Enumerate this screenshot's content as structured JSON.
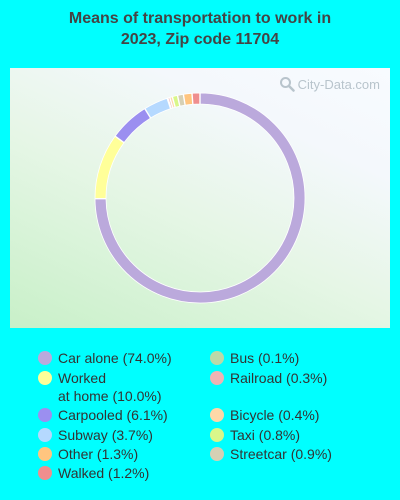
{
  "title_line1": "Means of transportation to work in",
  "title_line2": "2023, Zip code 11704",
  "watermark": "City-Data.com",
  "chart_data": {
    "type": "pie",
    "title": "Means of transportation to work in 2023, Zip code 11704",
    "slices": [
      {
        "label": "Car alone (74.0%)",
        "value": 74.0,
        "color": "#bba9dc"
      },
      {
        "label": "Worked\nat home (10.0%)",
        "value": 10.0,
        "color": "#ffff99"
      },
      {
        "label": "Carpooled (6.1%)",
        "value": 6.1,
        "color": "#9b8ff0"
      },
      {
        "label": "Subway (3.7%)",
        "value": 3.7,
        "color": "#b5d9ff"
      },
      {
        "label": "Other (1.3%)",
        "value": 1.3,
        "color": "#ffc57f"
      },
      {
        "label": "Walked (1.2%)",
        "value": 1.2,
        "color": "#ef8e8e"
      },
      {
        "label": "Bus (0.1%)",
        "value": 0.1,
        "color": "#bcd9a8"
      },
      {
        "label": "Railroad (0.3%)",
        "value": 0.3,
        "color": "#efb4b4"
      },
      {
        "label": "Bicycle (0.4%)",
        "value": 0.4,
        "color": "#ffd8a8"
      },
      {
        "label": "Taxi (0.8%)",
        "value": 0.8,
        "color": "#d9f78a"
      },
      {
        "label": "Streetcar (0.9%)",
        "value": 0.9,
        "color": "#d6d0b4"
      }
    ],
    "legend_placement": "bottom"
  }
}
